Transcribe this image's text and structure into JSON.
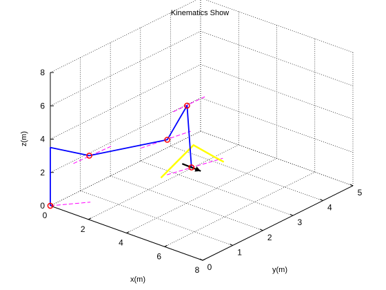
{
  "figure": {
    "background": "#ffffff"
  },
  "chart_data": {
    "type": "line",
    "projection": "3d",
    "title": "Kinematics Show",
    "xlabel": "x(m)",
    "ylabel": "y(m)",
    "zlabel": "z(m)",
    "xlim": [
      0,
      8
    ],
    "ylim": [
      0,
      5
    ],
    "zlim": [
      0,
      8
    ],
    "xticks": [
      "0",
      "2",
      "4",
      "6",
      "8"
    ],
    "yticks": [
      "0",
      "1",
      "2",
      "3",
      "4",
      "5"
    ],
    "zticks": [
      "0",
      "2",
      "4",
      "6",
      "8"
    ],
    "grid": true,
    "box": false,
    "colors": {
      "link": "#0000ff",
      "joint": "#ff0000",
      "joint_axis": "#ff00ff",
      "gripper": "#ffff00",
      "end_effector": "#000000"
    },
    "series": [
      {
        "style": "link",
        "points": [
          [
            0,
            0,
            0
          ],
          [
            0,
            0,
            3.5
          ],
          [
            2,
            0.03,
            3.8
          ],
          [
            3.3,
            1.8,
            3.7
          ],
          [
            1.5,
            3.6,
            3.4
          ],
          [
            4.1,
            2.1,
            2.1
          ]
        ]
      }
    ],
    "joints": [
      [
        0,
        0,
        0
      ],
      [
        2,
        0.03,
        3.8
      ],
      [
        3.3,
        1.8,
        3.7
      ],
      [
        1.5,
        3.6,
        3.4
      ],
      [
        4.1,
        2.1,
        2.1
      ]
    ],
    "joint_axes": [
      [
        [
          0,
          0,
          0
        ],
        [
          1,
          0.7,
          0
        ]
      ],
      [
        [
          1.64,
          -0.27,
          3.45
        ],
        [
          2.5,
          0.45,
          4.2
        ]
      ],
      [
        [
          2.7,
          1.3,
          3.4
        ],
        [
          3.9,
          2.2,
          4.1
        ]
      ],
      [
        [
          1.25,
          3.3,
          3.2
        ],
        [
          1.8,
          4.0,
          3.7
        ]
      ],
      [
        [
          3.6,
          1.6,
          1.9
        ],
        [
          4.8,
          2.7,
          2.4
        ]
      ]
    ],
    "gripper": [
      [
        3.6,
        1.4,
        1.9
      ],
      [
        3.1,
        2.8,
        2.4
      ],
      [
        4.7,
        2.5,
        2.6
      ],
      [
        4.85,
        2.7,
        2.2
      ]
    ],
    "end_effector_arrow": [
      [
        3.85,
        1.95,
        2.35
      ],
      [
        4.35,
        2.25,
        1.85
      ]
    ]
  }
}
